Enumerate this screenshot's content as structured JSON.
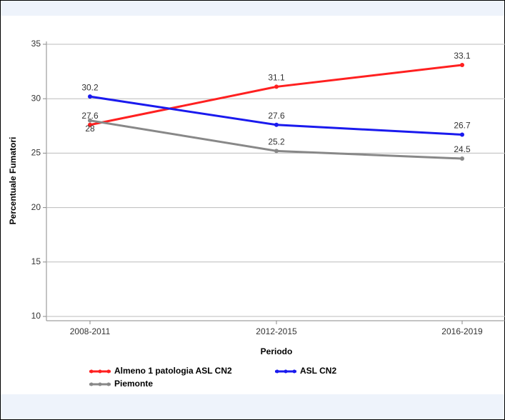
{
  "chart_data": {
    "type": "line",
    "x_label": "Periodo",
    "y_label": "Percentuale Fumatori",
    "categories": [
      "2008-2011",
      "2012-2015",
      "2016-2019"
    ],
    "series": [
      {
        "name": "Almeno 1 patologia ASL CN2",
        "color": "#ff2020",
        "values": [
          27.6,
          31.1,
          33.1
        ]
      },
      {
        "name": "ASL CN2",
        "color": "#1a1aee",
        "values": [
          30.2,
          27.6,
          26.7
        ]
      },
      {
        "name": "Piemonte",
        "color": "#888888",
        "values": [
          28,
          25.2,
          24.5
        ]
      }
    ],
    "ylim": [
      10,
      35
    ],
    "yticks": [
      10,
      15,
      20,
      25,
      30,
      35
    ],
    "grid": true
  }
}
